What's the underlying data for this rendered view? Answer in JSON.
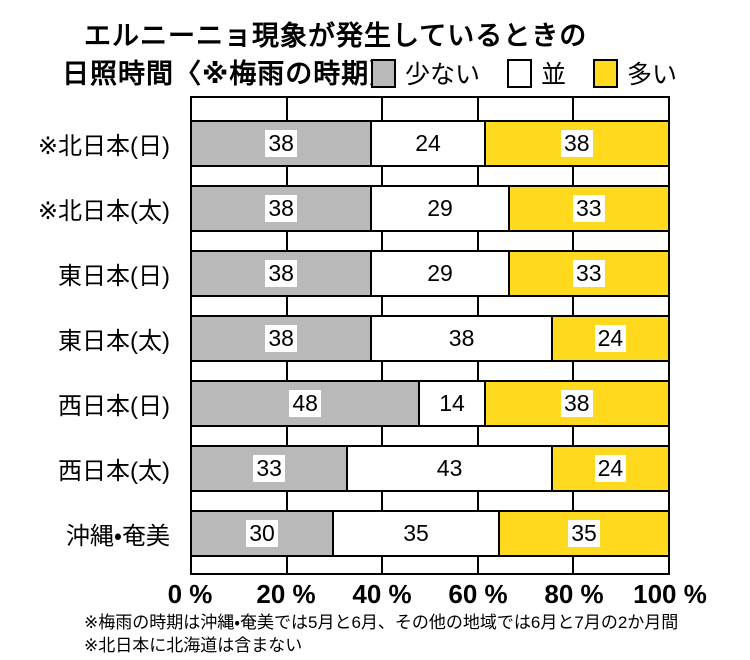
{
  "title": {
    "line1": "エルニーニョ現象が発生しているときの",
    "line2": "日照時間〈※梅雨の時期〉"
  },
  "legend": [
    {
      "label": "少ない",
      "color": "#B9B9B9"
    },
    {
      "label": "並",
      "color": "#FFFFFF"
    },
    {
      "label": "多い",
      "color": "#FFD91E"
    }
  ],
  "chart_data": {
    "type": "bar",
    "stacked": true,
    "orientation": "horizontal",
    "title": "エルニーニョ現象が発生しているときの日照時間〈※梅雨の時期〉",
    "unit": "%",
    "categories": [
      "※北日本(日)",
      "※北日本(太)",
      "東日本(日)",
      "東日本(太)",
      "西日本(日)",
      "西日本(太)",
      "沖縄・奄美"
    ],
    "series": [
      {
        "name": "少ない",
        "color": "#B9B9B9",
        "values": [
          38,
          38,
          38,
          38,
          48,
          33,
          30
        ]
      },
      {
        "name": "並",
        "color": "#FFFFFF",
        "values": [
          24,
          29,
          29,
          38,
          14,
          43,
          35
        ]
      },
      {
        "name": "多い",
        "color": "#FFD91E",
        "values": [
          38,
          33,
          33,
          24,
          38,
          24,
          35
        ]
      }
    ],
    "x_axis": {
      "min": 0,
      "max": 100,
      "tick_labels": [
        "0 %",
        "20 %",
        "40 %",
        "60 %",
        "80 %",
        "100 %"
      ],
      "gridlines_at": [
        20,
        40,
        60,
        80
      ]
    },
    "legend_position": "top-right",
    "grid": true
  },
  "footnotes": [
    "※梅雨の時期は沖縄・奄美では5月と6月、その他の地域では6月と7月の2か月間",
    "※北日本に北海道は含まない"
  ],
  "colors": {
    "bar_border": "#000000",
    "frame": "#000000",
    "background": "#FFFFFF",
    "text": "#000000"
  }
}
